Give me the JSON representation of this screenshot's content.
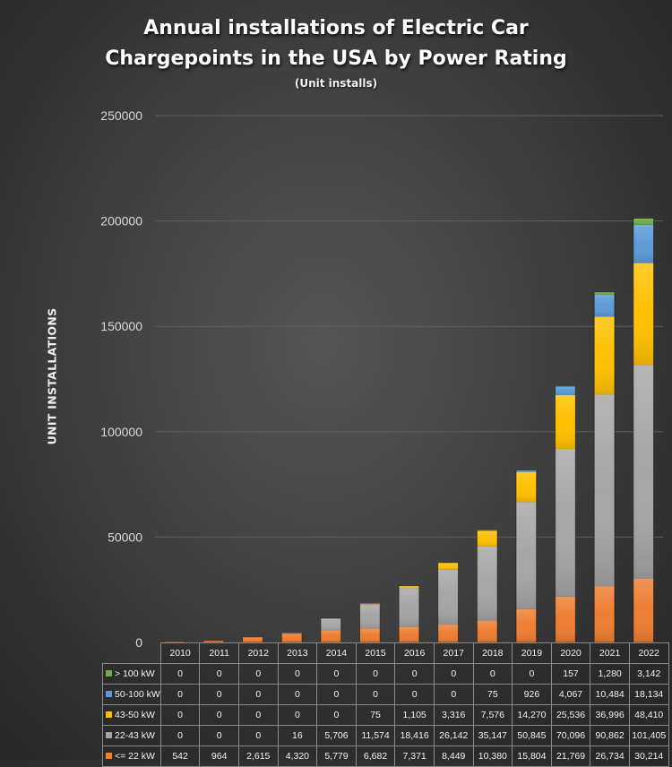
{
  "chart_data": {
    "type": "bar",
    "stacked": true,
    "title": "Annual installations of Electric Car Chargepoints in the USA by Power Rating",
    "title_lines": [
      "Annual installations of Electric Car",
      "Chargepoints in the USA by Power Rating"
    ],
    "subtitle": "(Unit installs)",
    "xlabel": "",
    "ylabel": "UNIT INSTALLATIONS",
    "ylim": [
      0,
      250000
    ],
    "yticks": [
      0,
      50000,
      100000,
      150000,
      200000,
      250000
    ],
    "ytick_labels": [
      "0",
      "50000",
      "100000",
      "150000",
      "200000",
      "250000"
    ],
    "grid": true,
    "legend": "data-table-below",
    "categories": [
      "2010",
      "2011",
      "2012",
      "2013",
      "2014",
      "2015",
      "2016",
      "2017",
      "2018",
      "2019",
      "2020",
      "2021",
      "2022"
    ],
    "series": [
      {
        "name": "<= 22 kW",
        "color": "#ED7D31",
        "values": [
          542,
          964,
          2615,
          4320,
          5779,
          6682,
          7371,
          8449,
          10380,
          15804,
          21769,
          26734,
          30214
        ],
        "labels": [
          "542",
          "964",
          "2,615",
          "4,320",
          "5,779",
          "6,682",
          "7,371",
          "8,449",
          "10,380",
          "15,804",
          "21,769",
          "26,734",
          "30,214"
        ]
      },
      {
        "name": "22-43 kW",
        "color": "#A5A5A5",
        "values": [
          0,
          0,
          0,
          16,
          5706,
          11574,
          18416,
          26142,
          35147,
          50845,
          70096,
          90862,
          101405
        ],
        "labels": [
          "0",
          "0",
          "0",
          "16",
          "5,706",
          "11,574",
          "18,416",
          "26,142",
          "35,147",
          "50,845",
          "70,096",
          "90,862",
          "101,405"
        ]
      },
      {
        "name": "43-50 kW",
        "color": "#FFC000",
        "values": [
          0,
          0,
          0,
          0,
          0,
          75,
          1105,
          3316,
          7576,
          14270,
          25536,
          36996,
          48410
        ],
        "labels": [
          "0",
          "0",
          "0",
          "0",
          "0",
          "75",
          "1,105",
          "3,316",
          "7,576",
          "14,270",
          "25,536",
          "36,996",
          "48,410"
        ]
      },
      {
        "name": "50-100 kW",
        "color": "#5B9BD5",
        "values": [
          0,
          0,
          0,
          0,
          0,
          0,
          0,
          0,
          75,
          926,
          4067,
          10484,
          18134
        ],
        "labels": [
          "0",
          "0",
          "0",
          "0",
          "0",
          "0",
          "0",
          "0",
          "75",
          "926",
          "4,067",
          "10,484",
          "18,134"
        ]
      },
      {
        "name": "> 100 kW",
        "color": "#70AD47",
        "values": [
          0,
          0,
          0,
          0,
          0,
          0,
          0,
          0,
          0,
          0,
          157,
          1280,
          3142
        ],
        "labels": [
          "0",
          "0",
          "0",
          "0",
          "0",
          "0",
          "0",
          "0",
          "0",
          "0",
          "157",
          "1,280",
          "3,142"
        ]
      }
    ],
    "table_row_order": [
      "> 100 kW",
      "50-100 kW",
      "43-50 kW",
      "22-43 kW",
      "<= 22 kW"
    ]
  }
}
